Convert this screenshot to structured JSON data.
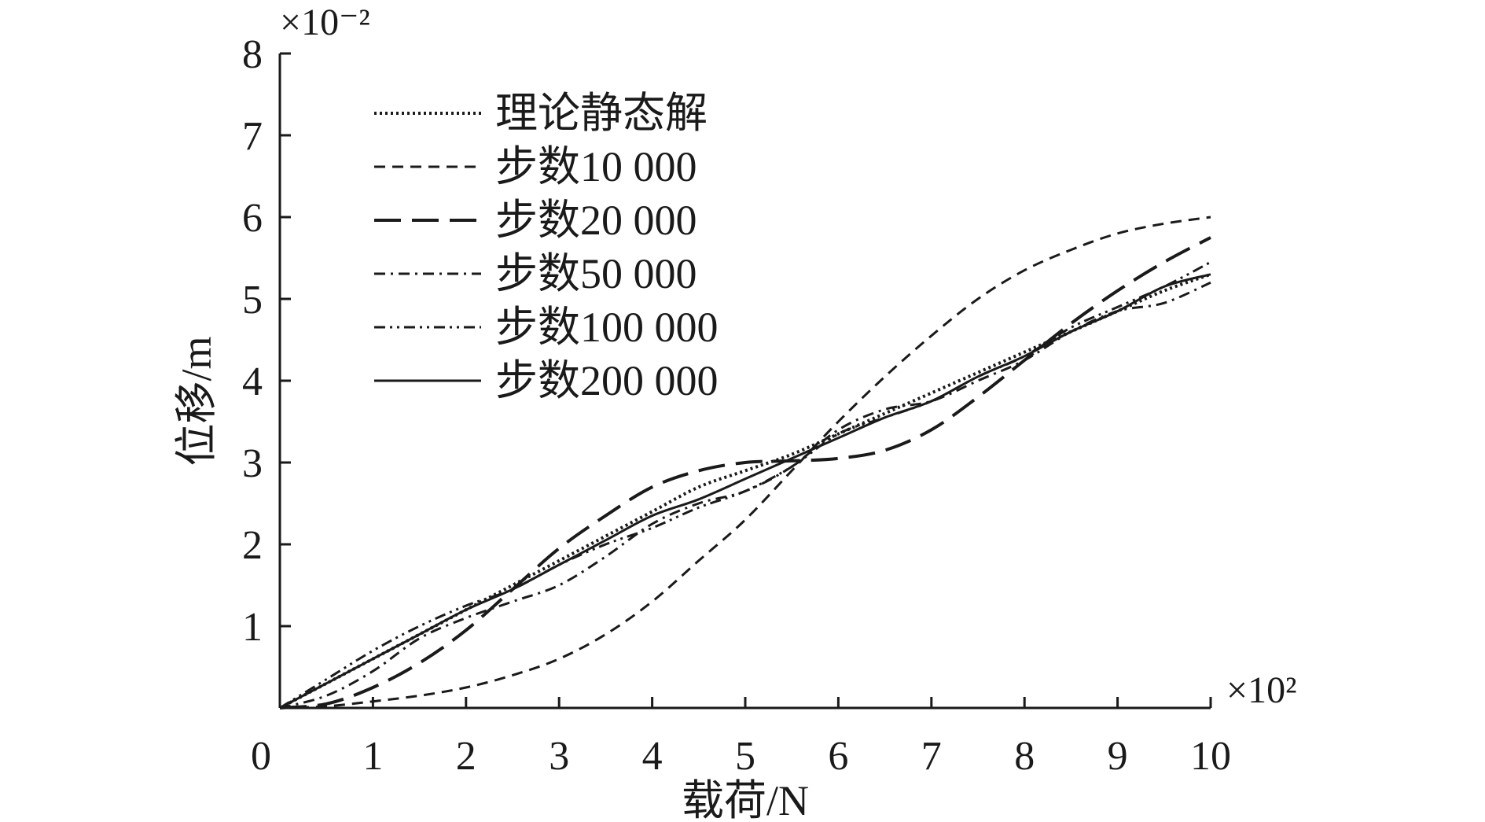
{
  "chart_data": {
    "type": "line",
    "title": "",
    "xlabel": "载荷/N",
    "ylabel": "位移/m",
    "x_multiplier": "×10²",
    "y_multiplier": "×10⁻²",
    "xlim": [
      0,
      10
    ],
    "ylim": [
      0,
      8
    ],
    "xticks": [
      "0",
      "1",
      "2",
      "3",
      "4",
      "5",
      "6",
      "7",
      "8",
      "9",
      "10"
    ],
    "yticks": [
      "1",
      "2",
      "3",
      "4",
      "5",
      "6",
      "7",
      "8"
    ],
    "grid": false,
    "legend_position": "top-left",
    "series": [
      {
        "name": "理论静态解",
        "style": "dotted",
        "x": [
          0,
          0.5,
          1,
          1.5,
          2,
          2.5,
          3,
          3.5,
          4,
          4.5,
          5,
          5.5,
          6,
          6.5,
          7,
          7.5,
          8,
          8.5,
          9,
          9.5,
          10
        ],
        "y": [
          0,
          0.3,
          0.6,
          0.9,
          1.2,
          1.5,
          1.8,
          2.1,
          2.4,
          2.7,
          2.9,
          3.1,
          3.35,
          3.6,
          3.85,
          4.1,
          4.35,
          4.6,
          4.85,
          5.1,
          5.3
        ]
      },
      {
        "name": "步数10 000",
        "style": "short-dash",
        "x": [
          0,
          0.5,
          1,
          1.5,
          2,
          2.5,
          3,
          3.5,
          4,
          4.5,
          5,
          5.5,
          6,
          6.5,
          7,
          7.5,
          8,
          8.5,
          9,
          9.5,
          10
        ],
        "y": [
          0,
          0.02,
          0.08,
          0.15,
          0.25,
          0.4,
          0.6,
          0.9,
          1.3,
          1.8,
          2.3,
          2.9,
          3.5,
          4.05,
          4.55,
          5.0,
          5.35,
          5.6,
          5.8,
          5.92,
          6.0
        ]
      },
      {
        "name": "步数20 000",
        "style": "long-dash",
        "x": [
          0,
          0.5,
          1,
          1.5,
          2,
          2.5,
          3,
          3.5,
          4,
          4.5,
          5,
          5.5,
          6,
          6.5,
          7,
          7.5,
          8,
          8.5,
          9,
          9.5,
          10
        ],
        "y": [
          0,
          0.05,
          0.25,
          0.55,
          0.95,
          1.45,
          1.95,
          2.35,
          2.7,
          2.9,
          3.0,
          3.02,
          3.05,
          3.15,
          3.4,
          3.8,
          4.25,
          4.7,
          5.1,
          5.45,
          5.75
        ]
      },
      {
        "name": "步数50 000",
        "style": "dash-dot",
        "x": [
          0,
          0.5,
          1,
          1.5,
          2,
          2.5,
          3,
          3.5,
          4,
          4.5,
          5,
          5.5,
          6,
          6.5,
          7,
          7.5,
          8,
          8.5,
          9,
          9.5,
          10
        ],
        "y": [
          0,
          0.15,
          0.45,
          0.85,
          1.1,
          1.3,
          1.5,
          1.85,
          2.25,
          2.5,
          2.65,
          2.95,
          3.4,
          3.65,
          3.75,
          4.0,
          4.25,
          4.6,
          4.85,
          4.95,
          5.2
        ]
      },
      {
        "name": "步数100 000",
        "style": "dash-dot-dot",
        "x": [
          0,
          0.5,
          1,
          1.5,
          2,
          2.5,
          3,
          3.5,
          4,
          4.5,
          5,
          5.5,
          6,
          6.5,
          7,
          7.5,
          8,
          8.5,
          9,
          9.5,
          10
        ],
        "y": [
          0,
          0.35,
          0.7,
          1.0,
          1.25,
          1.45,
          1.75,
          2.0,
          2.2,
          2.45,
          2.65,
          2.95,
          3.35,
          3.55,
          3.75,
          4.05,
          4.3,
          4.65,
          4.9,
          5.15,
          5.45
        ]
      },
      {
        "name": "步数200 000",
        "style": "solid",
        "x": [
          0,
          0.5,
          1,
          1.5,
          2,
          2.5,
          3,
          3.5,
          4,
          4.5,
          5,
          5.5,
          6,
          6.5,
          7,
          7.5,
          8,
          8.5,
          9,
          9.5,
          10
        ],
        "y": [
          0,
          0.3,
          0.6,
          0.9,
          1.2,
          1.45,
          1.75,
          2.05,
          2.35,
          2.55,
          2.8,
          3.05,
          3.3,
          3.55,
          3.75,
          4.05,
          4.3,
          4.6,
          4.85,
          5.15,
          5.3
        ]
      }
    ]
  }
}
